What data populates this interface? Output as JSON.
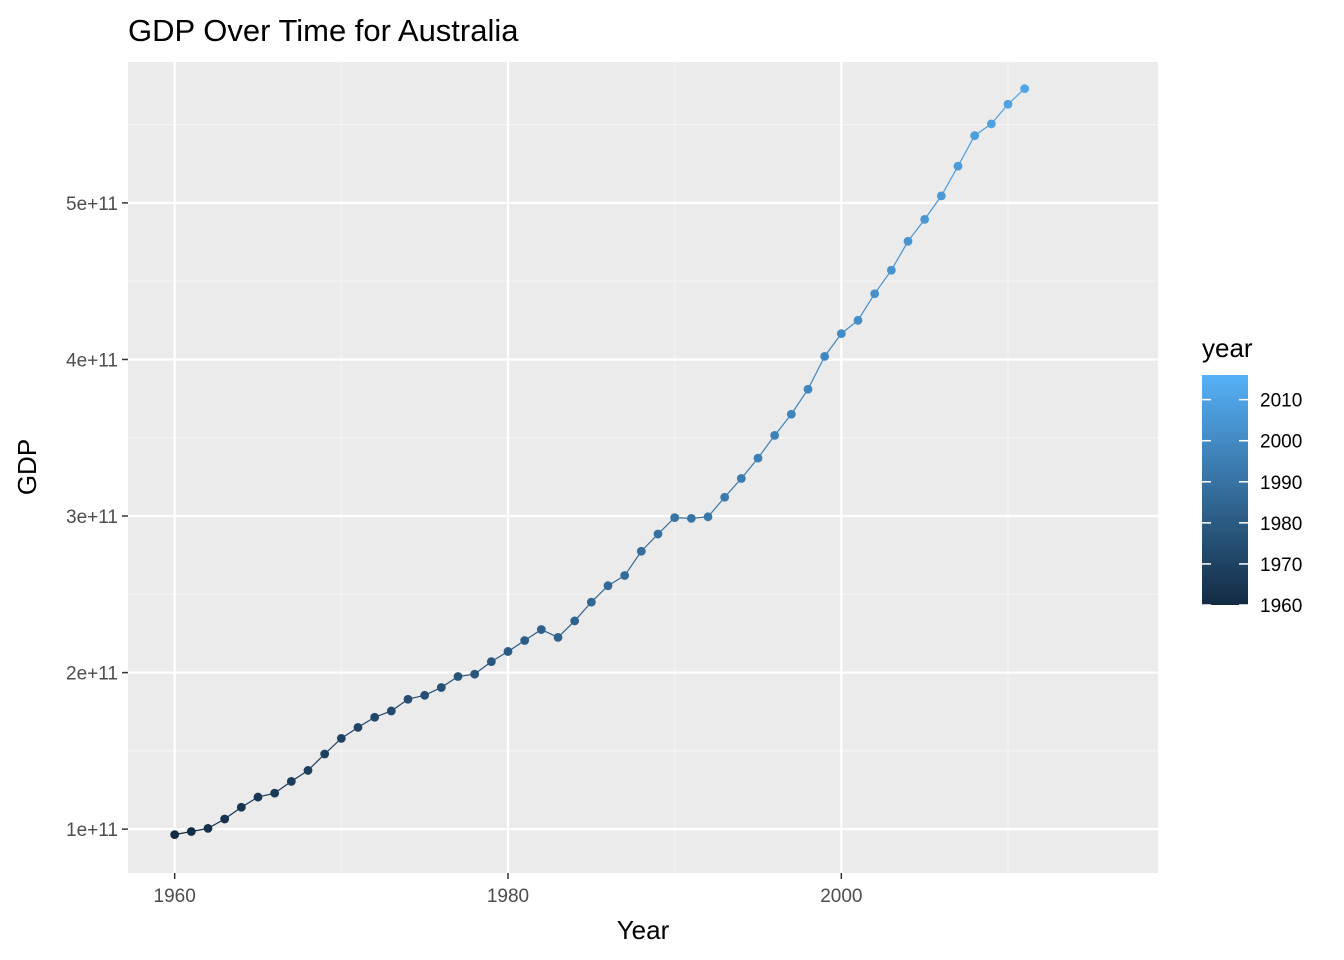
{
  "chart_data": {
    "type": "line",
    "title": "GDP Over Time for Australia",
    "xlabel": "Year",
    "ylabel": "GDP",
    "xlim": [
      1957.2,
      2019.0
    ],
    "ylim": [
      72000000000,
      590000000000
    ],
    "x_ticks": [
      1960,
      1980,
      2000
    ],
    "x_tick_labels": [
      "1960",
      "1980",
      "2000"
    ],
    "x_minor_ticks": [
      1970,
      1990,
      2010
    ],
    "y_ticks": [
      100000000000,
      200000000000,
      300000000000,
      400000000000,
      500000000000
    ],
    "y_tick_labels": [
      "1e+11",
      "2e+11",
      "3e+11",
      "4e+11",
      "5e+11"
    ],
    "y_minor_ticks": [
      150000000000,
      250000000000,
      350000000000,
      450000000000,
      550000000000
    ],
    "grid": true,
    "points_shown": true,
    "x": [
      1960,
      1961,
      1962,
      1963,
      1964,
      1965,
      1966,
      1967,
      1968,
      1969,
      1970,
      1971,
      1972,
      1973,
      1974,
      1975,
      1976,
      1977,
      1978,
      1979,
      1980,
      1981,
      1982,
      1983,
      1984,
      1985,
      1986,
      1987,
      1988,
      1989,
      1990,
      1991,
      1992,
      1993,
      1994,
      1995,
      1996,
      1997,
      1998,
      1999,
      2000,
      2001,
      2002,
      2003,
      2004,
      2005,
      2006,
      2007,
      2008,
      2009,
      2010,
      2011
    ],
    "y": [
      96500000000,
      98500000000,
      100500000000,
      106500000000,
      114000000000,
      120500000000,
      123000000000,
      130500000000,
      137500000000,
      148000000000,
      158000000000,
      165000000000,
      171500000000,
      175500000000,
      183000000000,
      185500000000,
      190500000000,
      197500000000,
      199000000000,
      207000000000,
      213500000000,
      220500000000,
      227500000000,
      222500000000,
      233000000000,
      245000000000,
      255500000000,
      262000000000,
      277500000000,
      288500000000,
      299000000000,
      298500000000,
      299500000000,
      312000000000,
      324000000000,
      337000000000,
      351500000000,
      365000000000,
      381000000000,
      402000000000,
      416500000000,
      425000000000,
      442000000000,
      457000000000,
      475500000000,
      489500000000,
      504500000000,
      523500000000,
      543000000000,
      550500000000,
      563000000000,
      573000000000
    ],
    "color_by": "year",
    "legend": {
      "title": "year",
      "placement": "right",
      "type": "colorbar",
      "range": [
        1960,
        2016
      ],
      "ticks": [
        1960,
        1970,
        1980,
        1990,
        2000,
        2010
      ],
      "tick_labels": [
        "1960",
        "1970",
        "1980",
        "1990",
        "2000",
        "2010"
      ],
      "color_low": "#132b43",
      "color_high": "#56b1f7"
    },
    "colors": {
      "panel_background": "#ebebeb",
      "grid_major": "#ffffff",
      "grid_minor": "#f4f4f4",
      "tick_label": "#4d4d4d",
      "tick_mark": "#333333"
    }
  }
}
